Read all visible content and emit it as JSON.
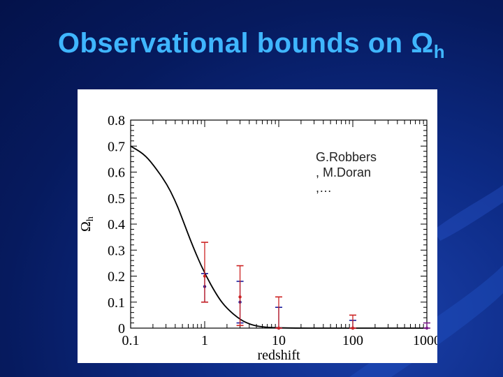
{
  "slide": {
    "title_main": "Observational bounds on Ω",
    "title_sub": "h"
  },
  "colors": {
    "title": "#3fb6ff",
    "curve": "#000000",
    "red": "#cc2222",
    "blue": "#1a1a9a",
    "purple": "#7a1a8a"
  },
  "annotation": {
    "lines": [
      "G.Robbers",
      ", M.Doran",
      ",…"
    ]
  },
  "chart_data": {
    "type": "line",
    "xscale": "log",
    "xlim": [
      0.1,
      1000
    ],
    "ylim": [
      0,
      0.8
    ],
    "xlabel": "redshift",
    "ylabel_main": "Ω",
    "ylabel_sub": "h",
    "xticks": [
      {
        "value": 0.1,
        "label": "0.1"
      },
      {
        "value": 1,
        "label": "1"
      },
      {
        "value": 10,
        "label": "10"
      },
      {
        "value": 100,
        "label": "100"
      },
      {
        "value": 1000,
        "label": "1000"
      }
    ],
    "yticks": [
      {
        "value": 0,
        "label": "0"
      },
      {
        "value": 0.1,
        "label": "0.1"
      },
      {
        "value": 0.2,
        "label": "0.2"
      },
      {
        "value": 0.3,
        "label": "0.3"
      },
      {
        "value": 0.4,
        "label": "0.4"
      },
      {
        "value": 0.5,
        "label": "0.5"
      },
      {
        "value": 0.6,
        "label": "0.6"
      },
      {
        "value": 0.7,
        "label": "0.7"
      },
      {
        "value": 0.8,
        "label": "0.8"
      }
    ],
    "curve": {
      "x": [
        0.1,
        0.15,
        0.2,
        0.3,
        0.4,
        0.5,
        0.7,
        1,
        1.5,
        2,
        3,
        4,
        5,
        7,
        10,
        20,
        50,
        100,
        1000
      ],
      "y": [
        0.7,
        0.67,
        0.63,
        0.56,
        0.49,
        0.42,
        0.31,
        0.21,
        0.12,
        0.075,
        0.033,
        0.016,
        0.008,
        0.003,
        0.001,
        0.0,
        0.0,
        0.0,
        0.0
      ]
    },
    "error_bars": [
      {
        "x": 1.0,
        "y": 0.16,
        "low": 0.1,
        "high": 0.21,
        "color": "#1a1a9a"
      },
      {
        "x": 1.0,
        "y": 0.2,
        "low": 0.1,
        "high": 0.33,
        "color": "#cc2222"
      },
      {
        "x": 3.0,
        "y": 0.1,
        "low": 0.02,
        "high": 0.18,
        "color": "#1a1a9a"
      },
      {
        "x": 3.0,
        "y": 0.12,
        "low": 0.01,
        "high": 0.24,
        "color": "#cc2222"
      },
      {
        "x": 10.0,
        "y": 0.0,
        "low": 0.0,
        "high": 0.08,
        "color": "#1a1a9a"
      },
      {
        "x": 10.0,
        "y": 0.0,
        "low": 0.0,
        "high": 0.12,
        "color": "#cc2222"
      },
      {
        "x": 100.0,
        "y": 0.0,
        "low": 0.0,
        "high": 0.03,
        "color": "#1a1a9a"
      },
      {
        "x": 100.0,
        "y": 0.0,
        "low": 0.0,
        "high": 0.05,
        "color": "#cc2222"
      },
      {
        "x": 1000.0,
        "y": 0.0,
        "low": 0.0,
        "high": 0.02,
        "color": "#7a1a8a"
      }
    ]
  }
}
